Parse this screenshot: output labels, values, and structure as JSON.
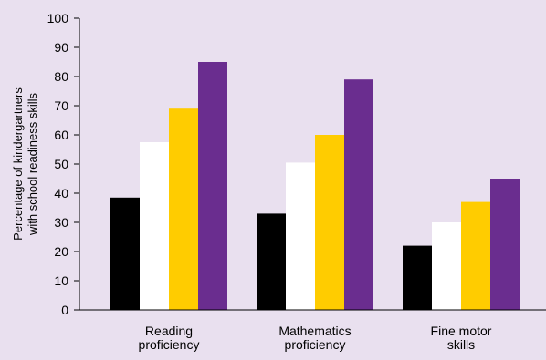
{
  "chart_data": {
    "type": "bar",
    "title": "",
    "xlabel": "",
    "ylabel": "Percentage of kindergartners with school readiness skills",
    "ylabel_lines": [
      "Percentage of kindergartners",
      "with school readiness skills"
    ],
    "ylim": [
      0,
      100
    ],
    "yticks": [
      0,
      10,
      20,
      30,
      40,
      50,
      60,
      70,
      80,
      90,
      100
    ],
    "grid": false,
    "legend": "none",
    "categories": [
      "Reading proficiency",
      "Mathematics proficiency",
      "Fine motor skills"
    ],
    "category_lines": [
      [
        "Reading",
        "proficiency"
      ],
      [
        "Mathematics",
        "proficiency"
      ],
      [
        "Fine motor",
        "skills"
      ]
    ],
    "series": [
      {
        "color": "#000000",
        "values": [
          38.5,
          33,
          22
        ]
      },
      {
        "color": "#ffffff",
        "values": [
          57.5,
          50.5,
          30
        ]
      },
      {
        "color": "#ffcc00",
        "values": [
          69,
          60,
          37
        ]
      },
      {
        "color": "#6a2d8f",
        "values": [
          85,
          79,
          45
        ]
      }
    ]
  },
  "colors": {
    "background": "#e9e0ef",
    "axis": "#000000"
  }
}
